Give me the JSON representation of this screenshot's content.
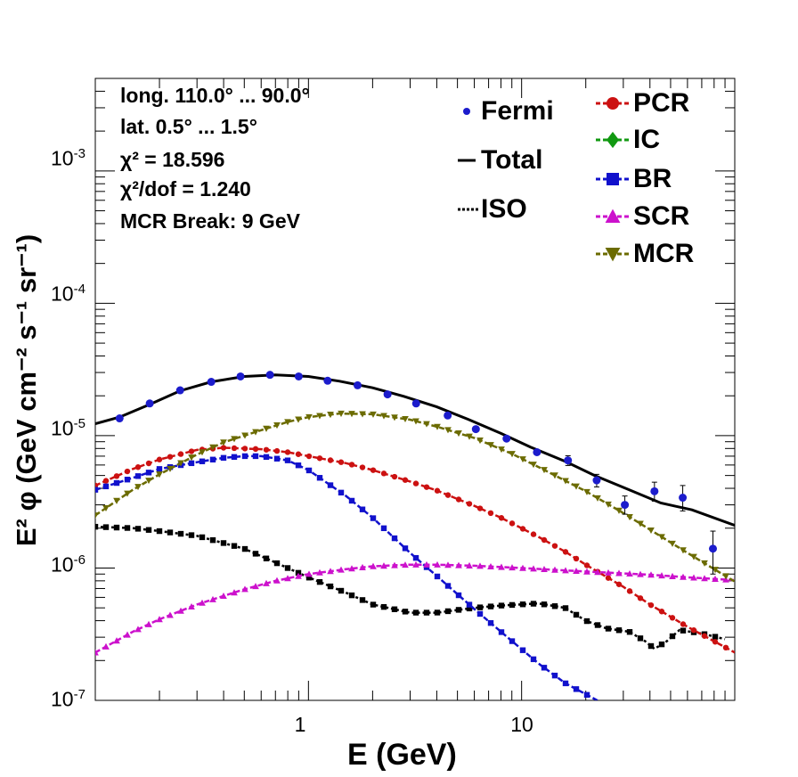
{
  "chart_data": {
    "type": "line",
    "xscale": "log",
    "yscale": "log",
    "xlim": [
      0.1,
      100
    ],
    "ylim": [
      1e-07,
      0.005
    ],
    "xlabel": "E (GeV)",
    "ylabel": "E² φ (GeV cm⁻² s⁻¹ sr⁻¹)",
    "x_ticks": [
      {
        "value": 1,
        "label": "1"
      },
      {
        "value": 10,
        "label": "10"
      }
    ],
    "y_ticks": [
      {
        "value": 1e-07,
        "base": "10",
        "exp": "-7"
      },
      {
        "value": 1e-06,
        "base": "10",
        "exp": "-6"
      },
      {
        "value": 1e-05,
        "base": "10",
        "exp": "-5"
      },
      {
        "value": 0.0001,
        "base": "10",
        "exp": "-4"
      },
      {
        "value": 0.001,
        "base": "10",
        "exp": "-3"
      }
    ],
    "info": [
      "long. 110.0° ... 90.0°",
      "lat. 0.5° ... 1.5°",
      "χ² = 18.596",
      "χ²/dof = 1.240",
      "MCR Break:  9 GeV"
    ],
    "fermi": {
      "name": "Fermi",
      "color": "#1c1ccc",
      "x": [
        0.13,
        0.18,
        0.25,
        0.35,
        0.48,
        0.66,
        0.9,
        1.23,
        1.7,
        2.35,
        3.2,
        4.5,
        6.1,
        8.5,
        11.8,
        16.5,
        22.5,
        30.5,
        42,
        57,
        79
      ],
      "y": [
        1.35e-05,
        1.75e-05,
        2.2e-05,
        2.55e-05,
        2.8e-05,
        2.88e-05,
        2.8e-05,
        2.6e-05,
        2.4e-05,
        2.05e-05,
        1.75e-05,
        1.42e-05,
        1.12e-05,
        9.5e-06,
        7.5e-06,
        6.5e-06,
        4.6e-06,
        3e-06,
        3.8e-06,
        3.4e-06,
        1.4e-06
      ],
      "err_lo": [
        0,
        0,
        0,
        0,
        0,
        0,
        0,
        0,
        0,
        0,
        0,
        0,
        0,
        0,
        0,
        5.5e-07,
        5e-07,
        4.5e-07,
        6e-07,
        7e-07,
        5e-07
      ],
      "err_hi": [
        0,
        0,
        0,
        0,
        0,
        0,
        0,
        0,
        0,
        0,
        0,
        0,
        0,
        0,
        0,
        5.5e-07,
        5e-07,
        5e-07,
        6.5e-07,
        8e-07,
        5e-07
      ]
    },
    "series": [
      {
        "name": "Total",
        "color": "#000000",
        "style": "solid",
        "marker": "none",
        "x": [
          0.1,
          0.13,
          0.18,
          0.25,
          0.35,
          0.5,
          0.7,
          1.0,
          1.4,
          2.0,
          2.8,
          4.0,
          5.6,
          8,
          11,
          16,
          22,
          32,
          45,
          63,
          100
        ],
        "y": [
          1.23e-05,
          1.38e-05,
          1.72e-05,
          2.18e-05,
          2.55e-05,
          2.8e-05,
          2.88e-05,
          2.8e-05,
          2.58e-05,
          2.3e-05,
          1.98e-05,
          1.65e-05,
          1.33e-05,
          1.04e-05,
          8.2e-06,
          6.4e-06,
          5e-06,
          3.9e-06,
          3.1e-06,
          2.75e-06,
          2.1e-06
        ]
      },
      {
        "name": "ISO",
        "color": "#000000",
        "style": "dotted",
        "marker": "square",
        "x": [
          0.1,
          0.15,
          0.2,
          0.3,
          0.5,
          0.7,
          1.0,
          1.5,
          2.0,
          3.0,
          4.0,
          6.0,
          8.0,
          12,
          16,
          20,
          25,
          32,
          38,
          42,
          48,
          55,
          70,
          90
        ],
        "y": [
          2.05e-06,
          2e-06,
          1.9e-06,
          1.75e-06,
          1.4e-06,
          1.1e-06,
          8.5e-07,
          6.5e-07,
          5.3e-07,
          4.6e-07,
          4.6e-07,
          5e-07,
          5.2e-07,
          5.4e-07,
          5e-07,
          4e-07,
          3.5e-07,
          3.3e-07,
          2.8e-07,
          2.45e-07,
          2.8e-07,
          3.4e-07,
          3.2e-07,
          2.9e-07
        ]
      },
      {
        "name": "PCR",
        "color": "#cc1111",
        "style": "dashed",
        "marker": "circle",
        "x": [
          0.1,
          0.15,
          0.2,
          0.3,
          0.4,
          0.6,
          0.8,
          1.0,
          1.5,
          2.0,
          3.0,
          4.0,
          6.0,
          8.0,
          12,
          16,
          20,
          30,
          40,
          60,
          100
        ],
        "y": [
          4.2e-06,
          5.6e-06,
          6.6e-06,
          7.8e-06,
          8.1e-06,
          7.9e-06,
          7.5e-06,
          7e-06,
          6.2e-06,
          5.5e-06,
          4.5e-06,
          3.85e-06,
          2.95e-06,
          2.4e-06,
          1.72e-06,
          1.33e-06,
          1.06e-06,
          7.2e-07,
          5.3e-07,
          3.6e-07,
          2.3e-07
        ]
      },
      {
        "name": "IC",
        "color": "#119911",
        "style": "dashed",
        "marker": "diamond",
        "x": [],
        "y": []
      },
      {
        "name": "BR",
        "color": "#1111cc",
        "style": "dashed",
        "marker": "square",
        "x": [
          0.1,
          0.15,
          0.2,
          0.3,
          0.4,
          0.5,
          0.6,
          0.8,
          1.0,
          1.5,
          2.0,
          3.0,
          4.0,
          6.0,
          8.0,
          12,
          16,
          24
        ],
        "y": [
          3.9e-06,
          4.8e-06,
          5.6e-06,
          6.3e-06,
          6.8e-06,
          7e-06,
          7e-06,
          6.5e-06,
          5.5e-06,
          3.5e-06,
          2.4e-06,
          1.3e-06,
          8.7e-07,
          4.9e-07,
          3.3e-07,
          1.9e-07,
          1.35e-07,
          9.5e-08
        ]
      },
      {
        "name": "SCR",
        "color": "#cc11cc",
        "style": "dashed",
        "marker": "triangle-up",
        "x": [
          0.1,
          0.15,
          0.2,
          0.3,
          0.5,
          0.7,
          1.0,
          1.5,
          2.0,
          3.0,
          4.0,
          6.0,
          10,
          20,
          40,
          60,
          100
        ],
        "y": [
          2.3e-07,
          3.3e-07,
          4.1e-07,
          5.3e-07,
          6.9e-07,
          8e-07,
          9e-07,
          9.8e-07,
          1.03e-06,
          1.06e-06,
          1.06e-06,
          1.04e-06,
          1e-06,
          9.4e-07,
          8.9e-07,
          8.5e-07,
          8.1e-07
        ]
      },
      {
        "name": "MCR",
        "color": "#6b6b00",
        "style": "dashed",
        "marker": "triangle-down",
        "x": [
          0.1,
          0.15,
          0.2,
          0.3,
          0.4,
          0.6,
          0.8,
          1.0,
          1.4,
          2.0,
          3.0,
          4.0,
          6.0,
          9.0,
          12,
          20,
          30,
          40,
          60,
          100
        ],
        "y": [
          2.5e-06,
          3.9e-06,
          5.1e-06,
          7.2e-06,
          8.9e-06,
          1.1e-05,
          1.27e-05,
          1.38e-05,
          1.47e-05,
          1.45e-05,
          1.32e-05,
          1.17e-05,
          9.6e-06,
          7.3e-06,
          5.8e-06,
          3.8e-06,
          2.6e-06,
          1.95e-06,
          1.3e-06,
          7.9e-07
        ]
      }
    ],
    "legend": [
      {
        "series": "PCR",
        "label": "PCR"
      },
      {
        "series": "IC",
        "label": "IC"
      },
      {
        "series": "BR",
        "label": "BR"
      },
      {
        "series": "SCR",
        "label": "SCR"
      },
      {
        "series": "MCR",
        "label": "MCR"
      }
    ],
    "legend_left": [
      {
        "series": "Fermi",
        "label": "Fermi"
      },
      {
        "series": "Total",
        "label": "Total"
      },
      {
        "series": "ISO",
        "label": "ISO"
      }
    ]
  }
}
